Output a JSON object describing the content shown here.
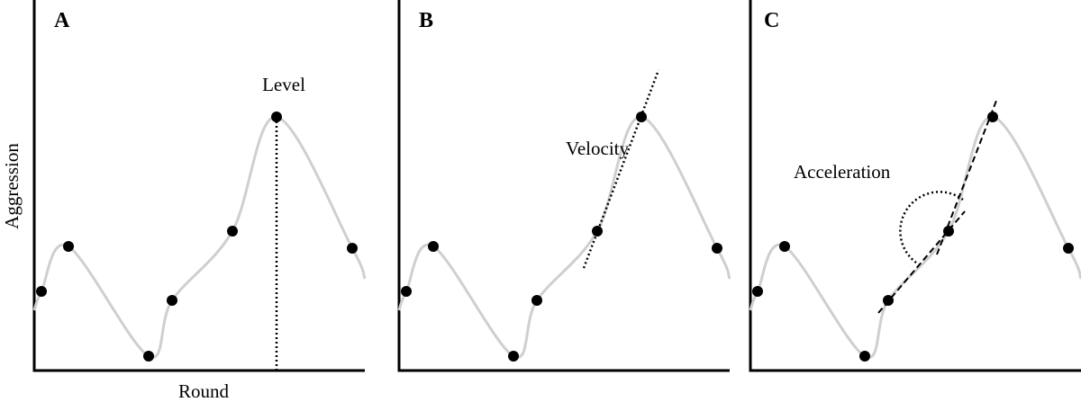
{
  "panels": [
    {
      "label": "A",
      "annotation": "Level"
    },
    {
      "label": "B",
      "annotation": "Velocity"
    },
    {
      "label": "C",
      "annotation": "Acceleration"
    }
  ],
  "y_axis_label": "Aggression",
  "x_axis_label": "Round"
}
